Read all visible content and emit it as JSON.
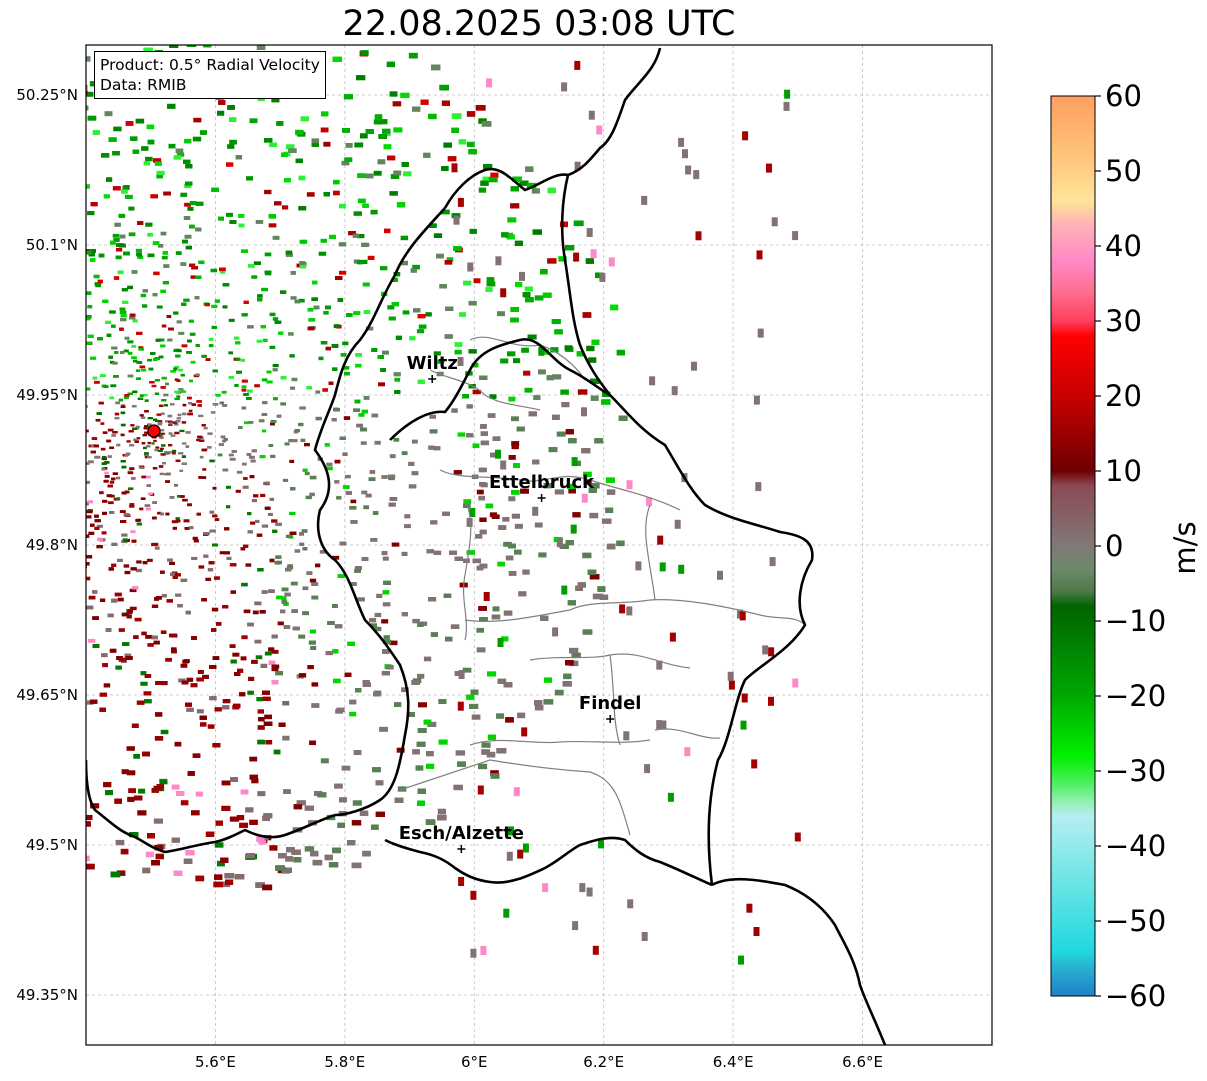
{
  "title": "22.08.2025 03:08 UTC",
  "info_box": {
    "product": "Product: 0.5° Radial Velocity",
    "data": "Data: RMIB"
  },
  "map": {
    "lon_range": [
      5.4,
      6.8
    ],
    "lat_range": [
      49.3,
      50.3
    ],
    "lon_ticks": [
      5.6,
      5.8,
      6.0,
      6.2,
      6.4,
      6.6
    ],
    "lon_tick_labels": [
      "5.6°E",
      "5.8°E",
      "6°E",
      "6.2°E",
      "6.4°E",
      "6.6°E"
    ],
    "lat_ticks": [
      50.25,
      50.1,
      49.95,
      49.8,
      49.65,
      49.5,
      49.35
    ],
    "lat_tick_labels": [
      "50.25°N",
      "50.1°N",
      "49.95°N",
      "49.8°N",
      "49.65°N",
      "49.5°N",
      "49.35°N"
    ],
    "grid": true,
    "radar_site": {
      "lon": 5.505,
      "lat": 49.914
    },
    "cities": [
      {
        "name": "Wiltz",
        "lon": 5.935,
        "lat": 49.966
      },
      {
        "name": "Ettelbruck",
        "lon": 6.104,
        "lat": 49.847
      },
      {
        "name": "Findel",
        "lon": 6.21,
        "lat": 49.626
      },
      {
        "name": "Esch/Alzette",
        "lon": 5.98,
        "lat": 49.496
      }
    ]
  },
  "colorbar": {
    "label": "m/s",
    "range": [
      -60,
      60
    ],
    "ticks": [
      60,
      50,
      40,
      30,
      20,
      10,
      0,
      -10,
      -20,
      -30,
      -40,
      -50,
      -60
    ],
    "tick_labels": [
      "60",
      "50",
      "40",
      "30",
      "20",
      "10",
      "0",
      "−10",
      "−20",
      "−30",
      "−40",
      "−50",
      "−60"
    ],
    "stops": [
      {
        "v": 60,
        "c": "#ff9f5f"
      },
      {
        "v": 52,
        "c": "#ffc47a"
      },
      {
        "v": 46,
        "c": "#ffe49a"
      },
      {
        "v": 43,
        "c": "#ffb4b4"
      },
      {
        "v": 38,
        "c": "#ff88c8"
      },
      {
        "v": 34,
        "c": "#ff6f8f"
      },
      {
        "v": 30,
        "c": "#ff3f5f"
      },
      {
        "v": 28,
        "c": "#ff0000"
      },
      {
        "v": 20,
        "c": "#c80000"
      },
      {
        "v": 10,
        "c": "#6e0000"
      },
      {
        "v": 8,
        "c": "#8a4a55"
      },
      {
        "v": 0,
        "c": "#827878"
      },
      {
        "v": -3,
        "c": "#6c8a6a"
      },
      {
        "v": -6,
        "c": "#4f7a4a"
      },
      {
        "v": -8,
        "c": "#006400"
      },
      {
        "v": -20,
        "c": "#00a800"
      },
      {
        "v": -28,
        "c": "#00f000"
      },
      {
        "v": -32,
        "c": "#55f06a"
      },
      {
        "v": -34,
        "c": "#90f0b0"
      },
      {
        "v": -36,
        "c": "#b4eef0"
      },
      {
        "v": -45,
        "c": "#6ae4e4"
      },
      {
        "v": -54,
        "c": "#20d8e0"
      },
      {
        "v": -56,
        "c": "#28b4d0"
      },
      {
        "v": -60,
        "c": "#2080c8"
      }
    ]
  }
}
